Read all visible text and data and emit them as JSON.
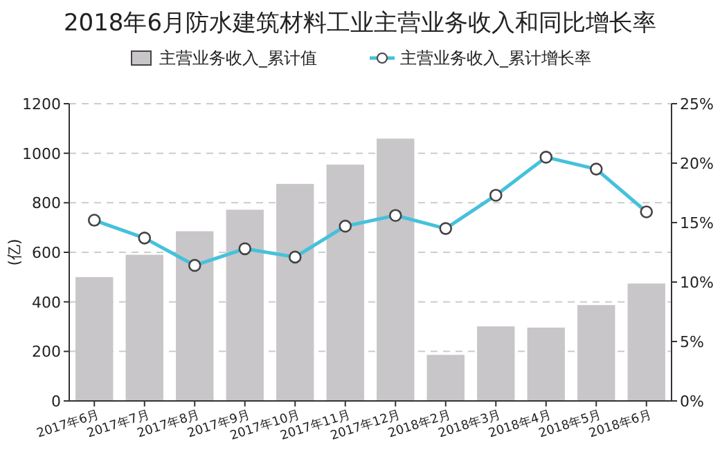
{
  "chart_data": {
    "type": "bar",
    "title": "2018年6月防水建筑材料工业主营业务收入和同比增长率",
    "ylabel": "(亿)",
    "categories": [
      "2017年6月",
      "2017年7月",
      "2017年8月",
      "2017年9月",
      "2017年10月",
      "2017年11月",
      "2017年12月",
      "2018年2月",
      "2018年3月",
      "2018年4月",
      "2018年5月",
      "2018年6月"
    ],
    "series": [
      {
        "name": "主营业务收入_累计值",
        "color": "#c8c6c8",
        "values": [
          500,
          590,
          685,
          772,
          876,
          954,
          1059,
          186,
          301,
          296,
          387,
          474
        ]
      },
      {
        "name": "主营业务收入_累计增长率",
        "type": "line",
        "axis": "y2",
        "color": "#45c1dc",
        "marker": "circle",
        "values": [
          15.2,
          13.7,
          11.4,
          12.8,
          12.1,
          14.7,
          15.6,
          14.5,
          17.3,
          20.5,
          19.5,
          15.9
        ]
      }
    ],
    "ylim": [
      0,
      1200
    ],
    "yticks": [
      0,
      200,
      400,
      600,
      800,
      1000,
      1200
    ],
    "y2lim": [
      0,
      25
    ],
    "y2ticks": [
      {
        "value": 0,
        "label": "0%"
      },
      {
        "value": 5,
        "label": "5%"
      },
      {
        "value": 10,
        "label": "10%"
      },
      {
        "value": 15,
        "label": "15%"
      },
      {
        "value": 20,
        "label": "20%"
      },
      {
        "value": 25,
        "label": "25%"
      }
    ],
    "grid": "y",
    "legend": "top"
  }
}
